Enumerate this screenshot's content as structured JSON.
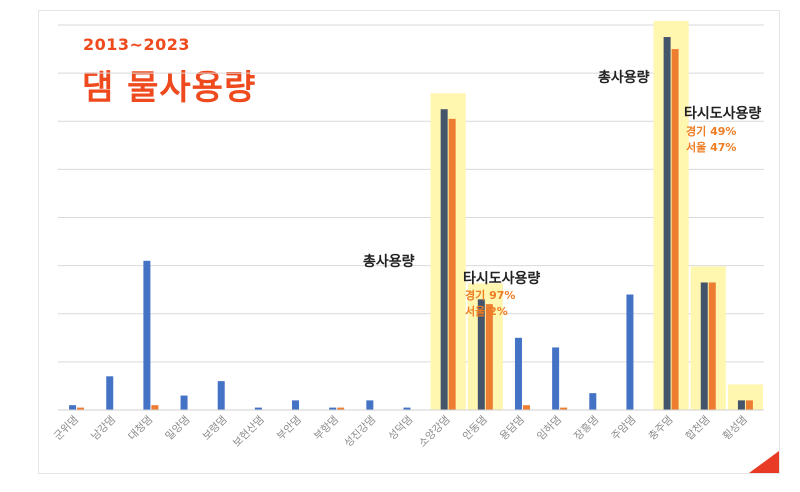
{
  "title": {
    "years": "2013~2023",
    "main": "댐 물사용량"
  },
  "annotations": {
    "soyang_total": "총사용량",
    "soyang_other": "타시도사용량",
    "soyang_gyeonggi": "경기 97%",
    "soyang_seoul": "서울 2%",
    "chungju_total": "총사용량",
    "chungju_other": "타시도사용량",
    "chungju_gyeonggi": "경기 49%",
    "chungju_seoul": "서울 47%"
  },
  "colors": {
    "total": "#4472c4",
    "total_highlight": "#44546a",
    "other": "#ed7d31",
    "highlight_box": "#fff6b0",
    "title": "#ef4a1d",
    "accent": "#e83a24"
  },
  "chart_data": {
    "type": "bar",
    "categories": [
      "군위댐",
      "남강댐",
      "대청댐",
      "밀양댐",
      "보령댐",
      "보현산댐",
      "부안댐",
      "부항댐",
      "성진강댐",
      "성덕댐",
      "소양강댐",
      "안동댐",
      "용담댐",
      "임하댐",
      "장흥댐",
      "주암댐",
      "충주댐",
      "합천댐",
      "횡성댐"
    ],
    "series": [
      {
        "key": "total",
        "values": [
          2,
          14,
          62,
          6,
          12,
          1,
          4,
          1,
          4,
          1,
          125,
          46,
          30,
          26,
          7,
          48,
          155,
          53,
          4
        ]
      },
      {
        "key": "other",
        "values": [
          1,
          0,
          2,
          0,
          0,
          0,
          0,
          1,
          0,
          0,
          121,
          44,
          2,
          1,
          0,
          0,
          150,
          53,
          4
        ]
      }
    ],
    "highlighted_categories": [
      "소양강댐",
      "안동댐",
      "충주댐",
      "합천댐",
      "횡성댐"
    ],
    "ylim": [
      0,
      160
    ],
    "grid": true
  }
}
